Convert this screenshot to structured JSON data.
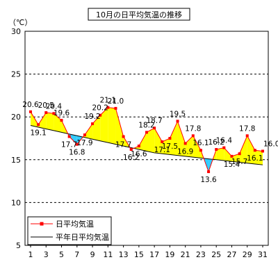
{
  "chart_data": {
    "type": "line",
    "title": "10月の日平均気温の推移",
    "ylabel": "（℃）",
    "xlabel": "",
    "ylim": [
      5,
      30
    ],
    "yticks": [
      5,
      10,
      15,
      20,
      25,
      30
    ],
    "xticks": [
      1,
      3,
      5,
      7,
      9,
      11,
      13,
      15,
      17,
      19,
      21,
      23,
      25,
      27,
      29,
      31
    ],
    "grid": "horizontal-dashed",
    "legend_position": "bottom-left",
    "x": [
      1,
      2,
      3,
      4,
      5,
      6,
      7,
      8,
      9,
      10,
      11,
      12,
      13,
      14,
      15,
      16,
      17,
      18,
      19,
      20,
      21,
      22,
      23,
      24,
      25,
      26,
      27,
      28,
      29,
      30,
      31
    ],
    "series": [
      {
        "name": "日平均気温",
        "color": "#ff0000",
        "values": [
          20.6,
          19.1,
          20.5,
          20.4,
          19.6,
          17.7,
          16.8,
          17.9,
          19.2,
          20.2,
          21.1,
          21.0,
          17.7,
          16.2,
          16.6,
          18.2,
          18.7,
          17.1,
          17.5,
          19.5,
          16.9,
          17.8,
          16.1,
          13.6,
          16.2,
          16.4,
          15.4,
          15.7,
          17.8,
          16.1,
          16.0
        ]
      },
      {
        "name": "平年日平均気温",
        "color": "#000000",
        "values": [
          19.0,
          18.8,
          18.6,
          18.4,
          18.2,
          18.0,
          17.8,
          17.6,
          17.4,
          17.2,
          17.0,
          16.8,
          16.6,
          16.4,
          16.2,
          16.0,
          15.8,
          15.7,
          15.6,
          15.5,
          15.4,
          15.3,
          15.2,
          15.1,
          15.0,
          14.9,
          14.8,
          14.7,
          14.6,
          14.5,
          14.4
        ]
      }
    ],
    "fill_above_color": "#ffff00",
    "fill_below_color": "#33ccff",
    "data_labels": [
      {
        "x": 1,
        "text": "20.6"
      },
      {
        "x": 2,
        "text": "19.1"
      },
      {
        "x": 3,
        "text": "20.5"
      },
      {
        "x": 4,
        "text": "20.4"
      },
      {
        "x": 5,
        "text": "19.6"
      },
      {
        "x": 6,
        "text": "17.7"
      },
      {
        "x": 7,
        "text": "16.8"
      },
      {
        "x": 8,
        "text": "17.9"
      },
      {
        "x": 9,
        "text": "19.2"
      },
      {
        "x": 10,
        "text": "20.2"
      },
      {
        "x": 11,
        "text": "21.1"
      },
      {
        "x": 12,
        "text": "21.0"
      },
      {
        "x": 13,
        "text": "17.7"
      },
      {
        "x": 14,
        "text": "16.2"
      },
      {
        "x": 15,
        "text": "16.6"
      },
      {
        "x": 16,
        "text": "18.2"
      },
      {
        "x": 17,
        "text": "18.7"
      },
      {
        "x": 18,
        "text": "17.1"
      },
      {
        "x": 19,
        "text": "17.5"
      },
      {
        "x": 20,
        "text": "19.5"
      },
      {
        "x": 21,
        "text": "16.9"
      },
      {
        "x": 22,
        "text": "17.8"
      },
      {
        "x": 23,
        "text": "16.1"
      },
      {
        "x": 24,
        "text": "13.6"
      },
      {
        "x": 25,
        "text": "16.2"
      },
      {
        "x": 26,
        "text": "16.4"
      },
      {
        "x": 27,
        "text": "15.4"
      },
      {
        "x": 28,
        "text": "15.7"
      },
      {
        "x": 29,
        "text": "17.8"
      },
      {
        "x": 30,
        "text": "16.1"
      },
      {
        "x": 31,
        "text": "16.0"
      }
    ]
  }
}
